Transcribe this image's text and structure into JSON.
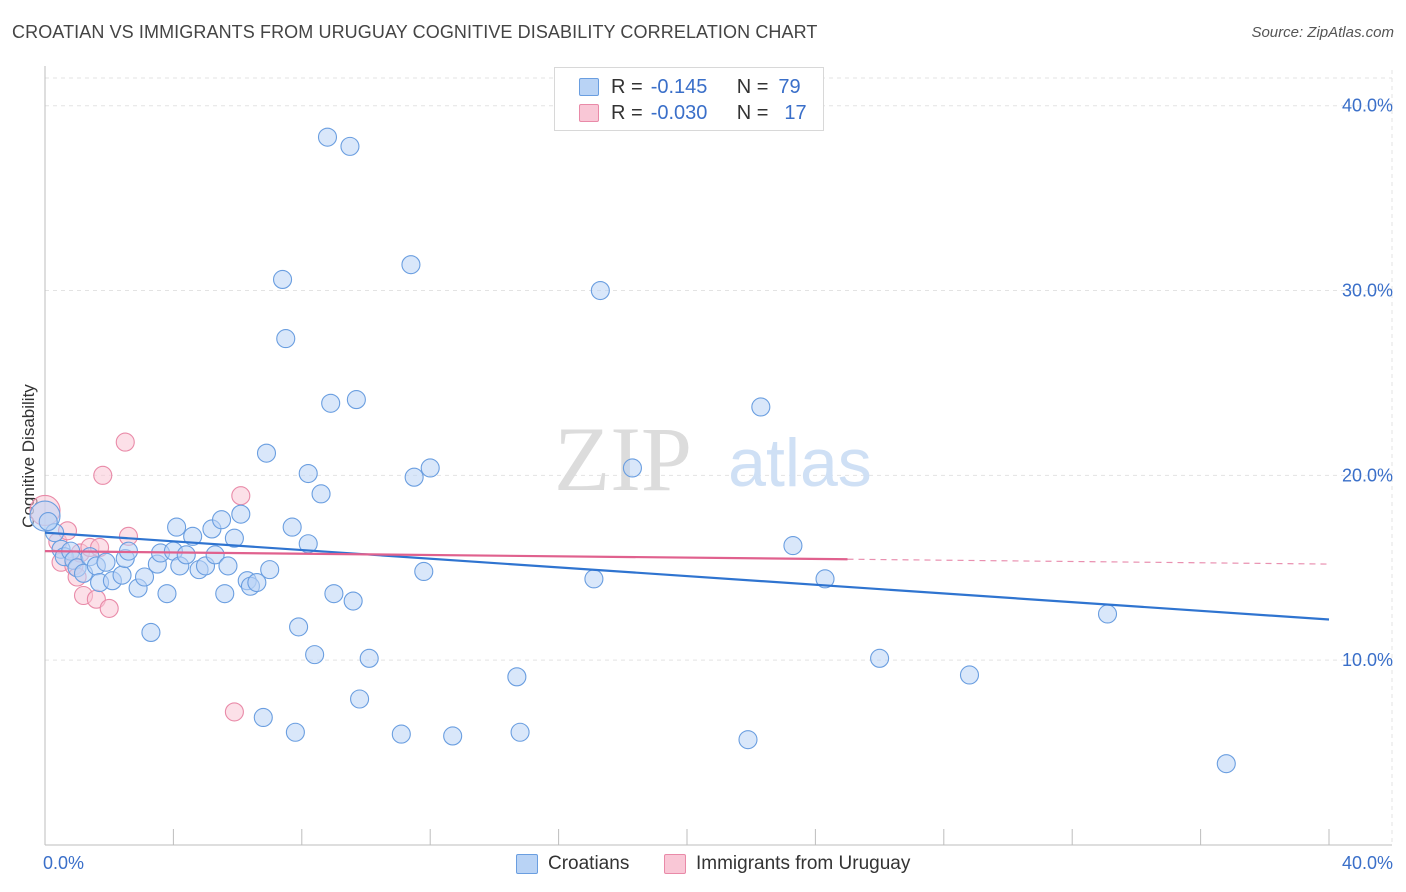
{
  "title": "CROATIAN VS IMMIGRANTS FROM URUGUAY COGNITIVE DISABILITY CORRELATION CHART",
  "source": "Source: ZipAtlas.com",
  "watermark": {
    "zip": "ZIP",
    "atlas": "atlas"
  },
  "legend": {
    "r_label": "R =",
    "n_label": "N =",
    "rows": [
      {
        "r": "-0.145",
        "n": "79"
      },
      {
        "r": "-0.030",
        "n": "17"
      }
    ]
  },
  "bottom_legend": {
    "croatians": "Croatians",
    "uruguay": "Immigrants from Uruguay"
  },
  "colors": {
    "blue_fill": "#b9d3f5",
    "blue_stroke": "#6a9ee0",
    "blue_line": "#2f74d0",
    "pink_fill": "#f9c7d6",
    "pink_stroke": "#e98aa8",
    "pink_line": "#e0618e",
    "tick_color": "#3a6fc9",
    "grid": "#e3e3e3"
  },
  "chart_data": {
    "type": "scatter",
    "title": "CROATIAN VS IMMIGRANTS FROM URUGUAY COGNITIVE DISABILITY CORRELATION CHART",
    "xlabel": "",
    "ylabel": "Cognitive Disability",
    "xlim": [
      0,
      40
    ],
    "ylim": [
      0,
      41.5
    ],
    "x_tick_labels": [
      "0.0%",
      "40.0%"
    ],
    "y_ticks": [
      {
        "value": 10,
        "label": "10.0%"
      },
      {
        "value": 20,
        "label": "20.0%"
      },
      {
        "value": 30,
        "label": "30.0%"
      },
      {
        "value": 40,
        "label": "40.0%"
      }
    ],
    "series": [
      {
        "name": "Croatians",
        "r": -0.145,
        "n": 79,
        "trend": {
          "x": [
            0,
            40
          ],
          "y": [
            16.9,
            12.2
          ],
          "dash_from": null
        },
        "points": [
          [
            0.0,
            17.8
          ],
          [
            0.3,
            16.9
          ],
          [
            0.5,
            16.0
          ],
          [
            0.6,
            15.6
          ],
          [
            0.8,
            15.9
          ],
          [
            0.9,
            15.4
          ],
          [
            1.0,
            15.0
          ],
          [
            1.2,
            14.7
          ],
          [
            1.4,
            15.6
          ],
          [
            1.6,
            15.1
          ],
          [
            1.7,
            14.2
          ],
          [
            1.9,
            15.3
          ],
          [
            2.1,
            14.3
          ],
          [
            2.4,
            14.6
          ],
          [
            2.5,
            15.5
          ],
          [
            2.6,
            15.9
          ],
          [
            2.9,
            13.9
          ],
          [
            3.1,
            14.5
          ],
          [
            3.3,
            11.5
          ],
          [
            3.5,
            15.2
          ],
          [
            3.6,
            15.8
          ],
          [
            3.8,
            13.6
          ],
          [
            4.0,
            15.9
          ],
          [
            4.1,
            17.2
          ],
          [
            4.2,
            15.1
          ],
          [
            4.4,
            15.7
          ],
          [
            4.6,
            16.7
          ],
          [
            4.8,
            14.9
          ],
          [
            5.0,
            15.1
          ],
          [
            5.2,
            17.1
          ],
          [
            5.3,
            15.7
          ],
          [
            5.5,
            17.6
          ],
          [
            5.6,
            13.6
          ],
          [
            5.7,
            15.1
          ],
          [
            5.9,
            16.6
          ],
          [
            6.1,
            17.9
          ],
          [
            6.3,
            14.3
          ],
          [
            6.4,
            14.0
          ],
          [
            6.6,
            14.2
          ],
          [
            6.8,
            6.9
          ],
          [
            6.9,
            21.2
          ],
          [
            7.0,
            14.9
          ],
          [
            7.4,
            30.6
          ],
          [
            7.5,
            27.4
          ],
          [
            7.7,
            17.2
          ],
          [
            7.8,
            6.1
          ],
          [
            7.9,
            11.8
          ],
          [
            8.2,
            16.3
          ],
          [
            8.2,
            20.1
          ],
          [
            8.4,
            10.3
          ],
          [
            8.6,
            19.0
          ],
          [
            8.8,
            38.3
          ],
          [
            8.9,
            23.9
          ],
          [
            9.0,
            13.6
          ],
          [
            9.5,
            37.8
          ],
          [
            9.6,
            13.2
          ],
          [
            9.7,
            24.1
          ],
          [
            9.8,
            7.9
          ],
          [
            10.1,
            10.1
          ],
          [
            11.1,
            6.0
          ],
          [
            11.4,
            31.4
          ],
          [
            11.5,
            19.9
          ],
          [
            11.8,
            14.8
          ],
          [
            12.0,
            20.4
          ],
          [
            12.7,
            5.9
          ],
          [
            14.7,
            9.1
          ],
          [
            14.8,
            6.1
          ],
          [
            17.1,
            14.4
          ],
          [
            17.3,
            30.0
          ],
          [
            18.3,
            20.4
          ],
          [
            21.9,
            5.7
          ],
          [
            22.3,
            23.7
          ],
          [
            23.3,
            16.2
          ],
          [
            24.3,
            14.4
          ],
          [
            26.0,
            10.1
          ],
          [
            28.8,
            9.2
          ],
          [
            33.1,
            12.5
          ],
          [
            36.8,
            4.4
          ],
          [
            0.1,
            17.5
          ]
        ]
      },
      {
        "name": "Immigrants from Uruguay",
        "r": -0.03,
        "n": 17,
        "trend": {
          "x": [
            0,
            40
          ],
          "y": [
            15.9,
            15.2
          ],
          "dash_from": 25.0
        },
        "points": [
          [
            0.0,
            18.1
          ],
          [
            0.4,
            16.4
          ],
          [
            0.5,
            15.3
          ],
          [
            0.7,
            17.0
          ],
          [
            0.9,
            15.1
          ],
          [
            1.0,
            14.5
          ],
          [
            1.1,
            15.8
          ],
          [
            1.2,
            13.5
          ],
          [
            1.4,
            16.1
          ],
          [
            1.6,
            13.3
          ],
          [
            1.7,
            16.1
          ],
          [
            1.8,
            20.0
          ],
          [
            2.0,
            12.8
          ],
          [
            2.5,
            21.8
          ],
          [
            2.6,
            16.7
          ],
          [
            5.9,
            7.2
          ],
          [
            6.1,
            18.9
          ]
        ]
      }
    ]
  }
}
